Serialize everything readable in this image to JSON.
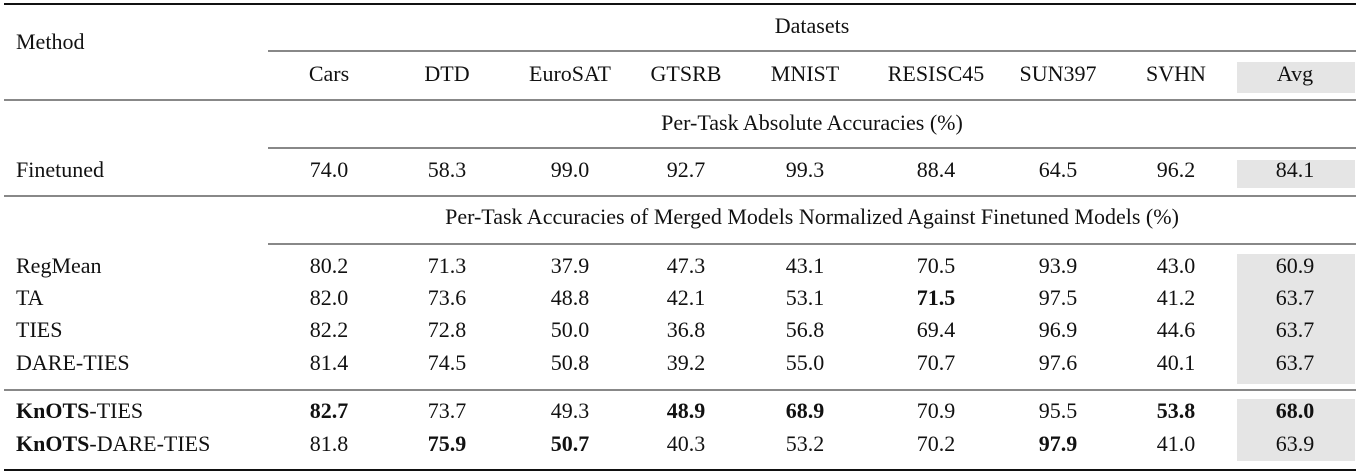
{
  "header": {
    "method": "Method",
    "group": "Datasets",
    "columns": [
      "Cars",
      "DTD",
      "EuroSAT",
      "GTSRB",
      "MNIST",
      "RESISC45",
      "SUN397",
      "SVHN",
      "Avg"
    ]
  },
  "sections": [
    {
      "title": "Per-Task Absolute Accuracies (%)",
      "rows": [
        {
          "method": "Finetuned",
          "values": [
            "74.0",
            "58.3",
            "99.0",
            "92.7",
            "99.3",
            "88.4",
            "64.5",
            "96.2",
            "84.1"
          ]
        }
      ]
    },
    {
      "title": "Per-Task Accuracies of Merged Models Normalized Against Finetuned Models (%)",
      "rows": [
        {
          "method": "RegMean",
          "values": [
            "80.2",
            "71.3",
            "37.9",
            "47.3",
            "43.1",
            "70.5",
            "93.9",
            "43.0",
            "60.9"
          ]
        },
        {
          "method": "TA",
          "values": [
            "82.0",
            "73.6",
            "48.8",
            "42.1",
            "53.1",
            "71.5",
            "97.5",
            "41.2",
            "63.7"
          ]
        },
        {
          "method": "TIES",
          "values": [
            "82.2",
            "72.8",
            "50.0",
            "36.8",
            "56.8",
            "69.4",
            "96.9",
            "44.6",
            "63.7"
          ]
        },
        {
          "method": "DARE-TIES",
          "values": [
            "81.4",
            "74.5",
            "50.8",
            "39.2",
            "55.0",
            "70.7",
            "97.6",
            "40.1",
            "63.7"
          ]
        }
      ]
    },
    {
      "rows": [
        {
          "method": "KnOTS-TIES",
          "values": [
            "82.7",
            "73.7",
            "49.3",
            "48.9",
            "68.9",
            "70.9",
            "95.5",
            "53.8",
            "68.0"
          ]
        },
        {
          "method": "KnOTS-DARE-TIES",
          "values": [
            "81.8",
            "75.9",
            "50.7",
            "40.3",
            "53.2",
            "70.2",
            "97.9",
            "41.0",
            "63.9"
          ]
        }
      ]
    }
  ]
}
